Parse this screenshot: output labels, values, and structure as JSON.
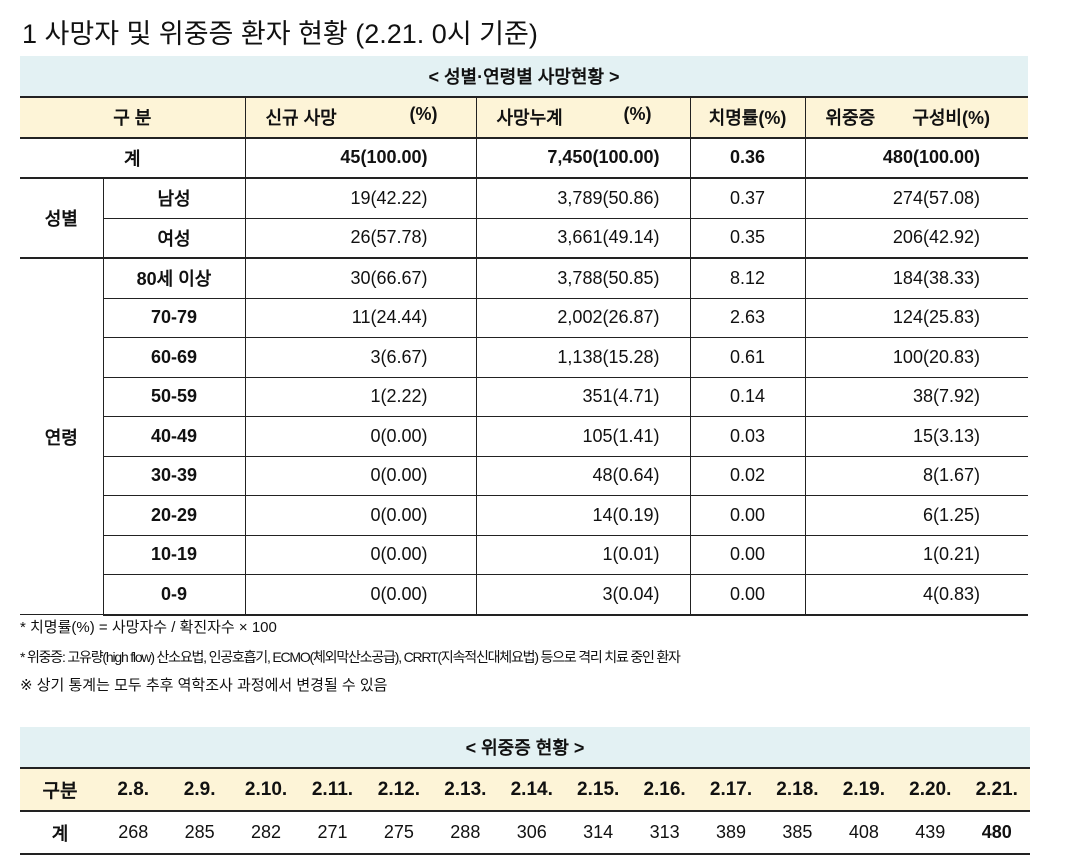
{
  "title": "1 사망자 및 위중증 환자 현황 (2.21. 0시 기준)",
  "table1": {
    "caption": "< 성별·연령별 사망현황 >",
    "header": [
      "구 분",
      "신규 사망",
      "(%)",
      "사망누계",
      "(%)",
      "치명률(%)",
      "위중증",
      "구성비(%)"
    ],
    "total": {
      "label": "계",
      "cells": [
        "45(100.00)",
        "7,450(100.00)",
        "0.36",
        "480(100.00)"
      ]
    },
    "groups": [
      {
        "label": "성별",
        "rows": [
          [
            "남성",
            "19(42.22)",
            "3,789(50.86)",
            "0.37",
            "274(57.08)"
          ],
          [
            "여성",
            "26(57.78)",
            "3,661(49.14)",
            "0.35",
            "206(42.92)"
          ]
        ]
      },
      {
        "label": "연령",
        "rows": [
          [
            "80세 이상",
            "30(66.67)",
            "3,788(50.85)",
            "8.12",
            "184(38.33)"
          ],
          [
            "70-79",
            "11(24.44)",
            "2,002(26.87)",
            "2.63",
            "124(25.83)"
          ],
          [
            "60-69",
            "3(6.67)",
            "1,138(15.28)",
            "0.61",
            "100(20.83)"
          ],
          [
            "50-59",
            "1(2.22)",
            "351(4.71)",
            "0.14",
            "38(7.92)"
          ],
          [
            "40-49",
            "0(0.00)",
            "105(1.41)",
            "0.03",
            "15(3.13)"
          ],
          [
            "30-39",
            "0(0.00)",
            "48(0.64)",
            "0.02",
            "8(1.67)"
          ],
          [
            "20-29",
            "0(0.00)",
            "14(0.19)",
            "0.00",
            "6(1.25)"
          ],
          [
            "10-19",
            "0(0.00)",
            "1(0.01)",
            "0.00",
            "1(0.21)"
          ],
          [
            "0-9",
            "0(0.00)",
            "3(0.04)",
            "0.00",
            "4(0.83)"
          ]
        ]
      }
    ]
  },
  "notes": [
    "* 치명률(%) = 사망자수 / 확진자수 × 100",
    "* 위중증: 고유량(high flow) 산소요법, 인공호흡기, ECMO(체외막산소공급), CRRT(지속적신대체요법) 등으로 격리 치료 중인 환자",
    "※ 상기 통계는 모두 추후 역학조사 과정에서 변경될 수 있음"
  ],
  "table2": {
    "caption": "< 위중증 현황 >",
    "header_label": "구분",
    "dates": [
      "2.8.",
      "2.9.",
      "2.10.",
      "2.11.",
      "2.12.",
      "2.13.",
      "2.14.",
      "2.15.",
      "2.16.",
      "2.17.",
      "2.18.",
      "2.19.",
      "2.20.",
      "2.21."
    ],
    "row_label": "계",
    "values": [
      "268",
      "285",
      "282",
      "271",
      "275",
      "288",
      "306",
      "314",
      "313",
      "389",
      "385",
      "408",
      "439",
      "480"
    ]
  }
}
